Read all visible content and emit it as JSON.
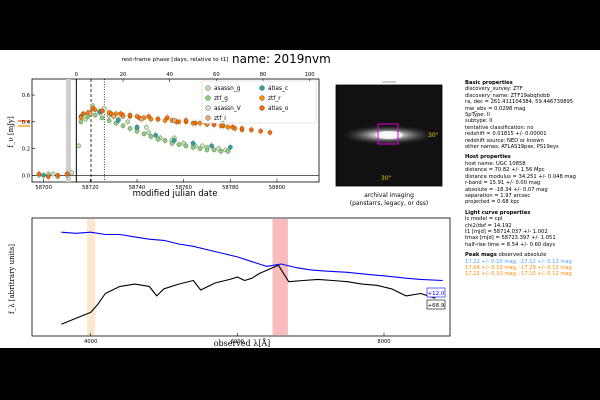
{
  "figure": {
    "title": "name:  2019nvm",
    "lc_xlabel": "modified julian date",
    "lc_ylabel": "f_ν [mJy]",
    "phase_label": "rest-frame phase [days, relative to t1]",
    "img_caption_1": "archival imaging",
    "img_caption_2": "(panstarrs, legacy, or dss)",
    "img_scale_1": "30\"",
    "img_scale_2": "30\"",
    "spec_xlabel": "observed λ[Å]",
    "spec_ylabel": "f_λ [abritrary units]",
    "spec_phase_blue": "+12.0",
    "spec_phase_black": "+68.9"
  },
  "chart_data": [
    {
      "type": "scatter",
      "title": "light curve",
      "xlabel": "modified julian date",
      "ylabel": "f_ν [mJy]",
      "xlim": [
        58695,
        58818
      ],
      "ylim": [
        -0.05,
        0.72
      ],
      "x_ticks": [
        58700,
        58720,
        58740,
        58760,
        58780,
        58800
      ],
      "x_tick_labels": [
        "58700",
        "58720",
        "58740",
        "58760",
        "58780",
        "58800"
      ],
      "y_ticks": [
        0.0,
        0.2,
        0.4,
        0.6
      ],
      "y_tick_labels": [
        "0.0",
        "0.2",
        "0.4",
        "0.6"
      ],
      "phase_axis": {
        "label": "rest-frame phase [days, relative to t1]",
        "ticks": [
          0,
          20,
          40,
          60,
          80,
          100,
          120
        ],
        "tick_labels": [
          "0",
          "20",
          "40",
          "60",
          "80",
          "100",
          "120"
        ],
        "t1_mjd": 58714
      },
      "markers": {
        "t1": 58714.0,
        "tmax": 58723.4,
        "dashed": 58720.3,
        "dotted": 58726.0
      },
      "legend": [
        "asassn_g",
        "atlas_c",
        "ztf_g",
        "ztf_r",
        "asassn_V",
        "atlas_o",
        "ztf_i"
      ],
      "series": [
        {
          "name": "asassn_g",
          "color": "#b9e6a8",
          "points": [
            [
              58698,
              0.0
            ],
            [
              58702,
              0.01
            ],
            [
              58706,
              -0.01
            ],
            [
              58710,
              0.0
            ],
            [
              58715,
              0.22
            ],
            [
              58718,
              0.42
            ],
            [
              58721,
              0.52
            ],
            [
              58724,
              0.48
            ],
            [
              58728,
              0.45
            ],
            [
              58732,
              0.42
            ],
            [
              58736,
              0.4
            ],
            [
              58740,
              0.35
            ],
            [
              58745,
              0.32
            ],
            [
              58750,
              0.28
            ],
            [
              58755,
              0.26
            ],
            [
              58760,
              0.24
            ],
            [
              58765,
              0.22
            ],
            [
              58770,
              0.21
            ],
            [
              58775,
              0.2
            ]
          ]
        },
        {
          "name": "asassn_V",
          "color": "#cfe9c2",
          "points": [
            [
              58704,
              0.01
            ],
            [
              58712,
              0.02
            ],
            [
              58719,
              0.46
            ],
            [
              58726,
              0.5
            ],
            [
              58734,
              0.44
            ],
            [
              58744,
              0.36
            ],
            [
              58756,
              0.28
            ],
            [
              58768,
              0.22
            ],
            [
              58778,
              0.19
            ]
          ]
        },
        {
          "name": "ztf_g",
          "color": "#8fd17f",
          "points": [
            [
              58716,
              0.4
            ],
            [
              58719,
              0.44
            ],
            [
              58722,
              0.45
            ],
            [
              58725,
              0.43
            ],
            [
              58728,
              0.41
            ],
            [
              58731,
              0.39
            ],
            [
              58734,
              0.37
            ],
            [
              58737,
              0.35
            ],
            [
              58740,
              0.33
            ],
            [
              58743,
              0.31
            ],
            [
              58746,
              0.29
            ],
            [
              58749,
              0.27
            ],
            [
              58752,
              0.26
            ],
            [
              58755,
              0.24
            ],
            [
              58758,
              0.23
            ],
            [
              58761,
              0.22
            ],
            [
              58764,
              0.21
            ],
            [
              58767,
              0.2
            ],
            [
              58770,
              0.19
            ],
            [
              58773,
              0.19
            ],
            [
              58776,
              0.18
            ],
            [
              58779,
              0.18
            ]
          ]
        },
        {
          "name": "atlas_c",
          "color": "#2aa6a6",
          "points": [
            [
              58700,
              0.0
            ],
            [
              58716,
              0.44
            ],
            [
              58724,
              0.47
            ],
            [
              58732,
              0.41
            ],
            [
              58740,
              0.36
            ],
            [
              58748,
              0.3
            ],
            [
              58756,
              0.26
            ],
            [
              58764,
              0.24
            ],
            [
              58772,
              0.22
            ],
            [
              58780,
              0.21
            ]
          ]
        },
        {
          "name": "ztf_r",
          "color": "#ff8c00",
          "points": [
            [
              58716,
              0.43
            ],
            [
              58719,
              0.47
            ],
            [
              58722,
              0.49
            ],
            [
              58725,
              0.48
            ],
            [
              58728,
              0.47
            ],
            [
              58731,
              0.46
            ],
            [
              58734,
              0.45
            ],
            [
              58737,
              0.44
            ],
            [
              58740,
              0.44
            ],
            [
              58743,
              0.43
            ],
            [
              58746,
              0.42
            ],
            [
              58749,
              0.42
            ],
            [
              58752,
              0.41
            ],
            [
              58755,
              0.41
            ],
            [
              58758,
              0.4
            ],
            [
              58761,
              0.4
            ],
            [
              58764,
              0.39
            ],
            [
              58767,
              0.39
            ],
            [
              58770,
              0.38
            ],
            [
              58773,
              0.38
            ],
            [
              58776,
              0.37
            ],
            [
              58779,
              0.36
            ],
            [
              58782,
              0.35
            ],
            [
              58785,
              0.34
            ]
          ]
        },
        {
          "name": "atlas_o",
          "color": "#ff6a00",
          "points": [
            [
              58698,
              0.01
            ],
            [
              58702,
              -0.01
            ],
            [
              58706,
              0.0
            ],
            [
              58710,
              0.01
            ],
            [
              58717,
              0.46
            ],
            [
              58721,
              0.5
            ],
            [
              58725,
              0.48
            ],
            [
              58729,
              0.46
            ],
            [
              58733,
              0.46
            ],
            [
              58737,
              0.45
            ],
            [
              58741,
              0.43
            ],
            [
              58745,
              0.44
            ],
            [
              58749,
              0.42
            ],
            [
              58753,
              0.43
            ],
            [
              58757,
              0.4
            ],
            [
              58761,
              0.41
            ],
            [
              58765,
              0.39
            ],
            [
              58769,
              0.4
            ],
            [
              58773,
              0.38
            ],
            [
              58777,
              0.37
            ],
            [
              58781,
              0.36
            ],
            [
              58785,
              0.35
            ],
            [
              58789,
              0.34
            ],
            [
              58793,
              0.33
            ],
            [
              58797,
              0.32
            ]
          ]
        },
        {
          "name": "ztf_i",
          "color": "#f2a76b",
          "points": [
            [
              58720,
              0.46
            ],
            [
              58730,
              0.44
            ],
            [
              58742,
              0.42
            ],
            [
              58756,
              0.41
            ],
            [
              58770,
              0.39
            ]
          ]
        }
      ]
    },
    {
      "type": "line",
      "title": "spectra",
      "xlabel": "observed λ[Å]",
      "ylabel": "f_λ [abritrary units]",
      "xlim": [
        3200,
        8900
      ],
      "x_ticks": [
        4000,
        6000,
        8000
      ],
      "x_tick_labels": [
        "4000",
        "6000",
        "8000"
      ],
      "ylim": [
        0,
        1
      ],
      "highlight_bands": [
        [
          3950,
          4060
        ],
        [
          6480,
          6690
        ]
      ],
      "series": [
        {
          "name": "+12.0",
          "color": "#0000ff",
          "points": [
            [
              3600,
              0.88
            ],
            [
              3800,
              0.87
            ],
            [
              4000,
              0.88
            ],
            [
              4200,
              0.86
            ],
            [
              4400,
              0.86
            ],
            [
              4600,
              0.84
            ],
            [
              4800,
              0.82
            ],
            [
              5000,
              0.81
            ],
            [
              5200,
              0.78
            ],
            [
              5400,
              0.76
            ],
            [
              5600,
              0.73
            ],
            [
              5800,
              0.7
            ],
            [
              6000,
              0.67
            ],
            [
              6200,
              0.63
            ],
            [
              6400,
              0.59
            ],
            [
              6500,
              0.6
            ],
            [
              6600,
              0.61
            ],
            [
              6800,
              0.58
            ],
            [
              7000,
              0.56
            ],
            [
              7200,
              0.55
            ],
            [
              7500,
              0.54
            ],
            [
              7800,
              0.52
            ],
            [
              8000,
              0.51
            ],
            [
              8300,
              0.49
            ],
            [
              8500,
              0.48
            ],
            [
              8800,
              0.47
            ]
          ]
        },
        {
          "name": "+68.9",
          "color": "#000000",
          "points": [
            [
              3600,
              0.1
            ],
            [
              3800,
              0.15
            ],
            [
              4000,
              0.2
            ],
            [
              4100,
              0.27
            ],
            [
              4200,
              0.36
            ],
            [
              4400,
              0.42
            ],
            [
              4600,
              0.44
            ],
            [
              4800,
              0.42
            ],
            [
              4900,
              0.34
            ],
            [
              5000,
              0.4
            ],
            [
              5200,
              0.44
            ],
            [
              5400,
              0.47
            ],
            [
              5500,
              0.39
            ],
            [
              5700,
              0.45
            ],
            [
              5900,
              0.48
            ],
            [
              6000,
              0.5
            ],
            [
              6100,
              0.47
            ],
            [
              6200,
              0.49
            ],
            [
              6300,
              0.53
            ],
            [
              6450,
              0.57
            ],
            [
              6560,
              0.6
            ],
            [
              6700,
              0.46
            ],
            [
              6900,
              0.47
            ],
            [
              7100,
              0.48
            ],
            [
              7300,
              0.47
            ],
            [
              7500,
              0.46
            ],
            [
              7700,
              0.44
            ],
            [
              7900,
              0.43
            ],
            [
              8100,
              0.4
            ],
            [
              8300,
              0.34
            ],
            [
              8500,
              0.36
            ],
            [
              8700,
              0.32
            ]
          ]
        }
      ]
    }
  ],
  "info": {
    "basic": {
      "heading": "Basic properties",
      "lines": [
        "discovery_survey:  ZTF",
        "discovery_name:  ZTF19abqhobb",
        "ra, dec = 261.411104384, 59.446739895",
        "mw_ebv = 0.0298 mag",
        "SpType:  II",
        "subtype:  II",
        "tentative classification:  no",
        "redshift = 0.01815 +/- 0.00001",
        "redshift source:  NED or known",
        "other names:  ATLAS19pxe, PS19eys"
      ]
    },
    "host": {
      "heading": "Host properties",
      "lines": [
        "host name:  UGC 10858",
        "distance = 70.82 +/- 1.56 Mpc",
        "distance modulus = 34.251 +/- 0.048 mag",
        "r-band = 15.91 +/- 0.00 mag",
        "absolute = -18.34 +/- 0.07 mag",
        "separation = 1.97 arcsec",
        "projected = 0.68 kpc"
      ]
    },
    "lc": {
      "heading": "Light curve properties",
      "lines": [
        "lc model = cpl",
        "chi2/dof = 14.192",
        "t1 [mjd] = 58714.037 +/- 1.002",
        "tmax [mjd] = 58723.397 +/- 1.051",
        "half-rise time = 8.54 +/- 0.60 days"
      ]
    },
    "peak": {
      "heading": "Peak mags",
      "heading_suffix": " observed  absolute",
      "lines": [
        {
          "text": "17.22 +/- 0.10 mag, -17.12 +/- 0.12 mag",
          "color": "#4aa3ff"
        },
        {
          "text": "17.04 +/- 0.10 mag, -17.29 +/- 0.12 mag",
          "color": "#ff8c00"
        },
        {
          "text": "17.22 +/- 0.10 mag, -17.10 +/- 0.12 mag",
          "color": "#ff8c00"
        }
      ]
    }
  }
}
